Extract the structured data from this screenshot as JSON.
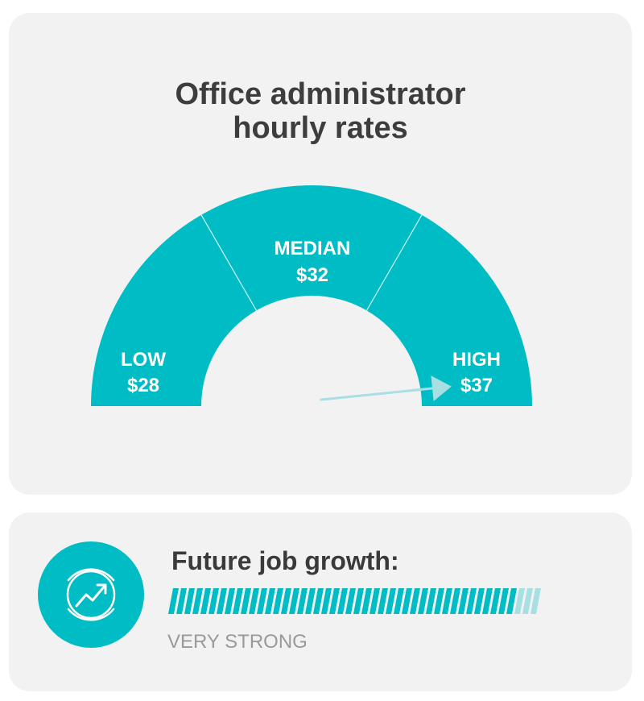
{
  "colors": {
    "accent": "#00bcc5",
    "accent_light": "#a8dfe2",
    "card_background": "#f2f2f2",
    "title_text": "#3d3d3d",
    "label_text": "#ffffff",
    "muted_text": "#9a9a9a"
  },
  "chart_data": {
    "type": "gauge",
    "title_lines": [
      "Office administrator",
      "hourly rates"
    ],
    "segments": [
      {
        "label": "LOW",
        "value": 28,
        "value_label": "$28"
      },
      {
        "label": "MEDIAN",
        "value": 32,
        "value_label": "$32"
      },
      {
        "label": "HIGH",
        "value": 37,
        "value_label": "$37"
      }
    ],
    "pointer": {
      "segment": "HIGH"
    }
  },
  "growth": {
    "title": "Future job growth:",
    "level_label": "VERY STRONG",
    "level_fraction": 0.93,
    "icon": "trending-up-icon"
  }
}
